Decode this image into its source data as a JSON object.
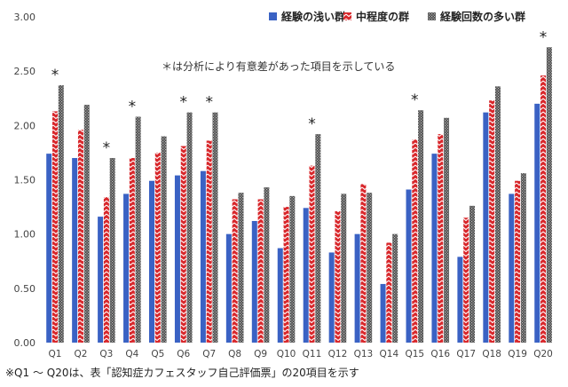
{
  "chart_data": {
    "type": "bar",
    "title": "",
    "xlabel": "",
    "ylabel": "",
    "ylim": [
      0,
      3
    ],
    "yticks": [
      "0.00",
      "0.50",
      "1.00",
      "1.50",
      "2.00",
      "2.50",
      "3.00"
    ],
    "grid": false,
    "legend_position": "top-right",
    "categories": [
      "Q1",
      "Q2",
      "Q3",
      "Q4",
      "Q5",
      "Q6",
      "Q7",
      "Q8",
      "Q9",
      "Q10",
      "Q11",
      "Q12",
      "Q13",
      "Q14",
      "Q15",
      "Q16",
      "Q17",
      "Q18",
      "Q19",
      "Q20"
    ],
    "series": [
      {
        "name": "経験の浅い群",
        "color": "#3a62c4",
        "pattern": "solid",
        "values": [
          1.74,
          1.7,
          1.16,
          1.37,
          1.49,
          1.54,
          1.58,
          1.0,
          1.12,
          0.87,
          1.24,
          0.83,
          1.0,
          0.54,
          1.41,
          1.74,
          0.79,
          2.12,
          1.37,
          2.2
        ]
      },
      {
        "name": "中程度の群",
        "color": "#d8262a",
        "pattern": "zigzag",
        "values": [
          2.13,
          1.96,
          1.34,
          1.7,
          1.75,
          1.81,
          1.86,
          1.32,
          1.32,
          1.25,
          1.63,
          1.21,
          1.46,
          0.92,
          1.87,
          1.92,
          1.15,
          2.23,
          1.49,
          2.46
        ]
      },
      {
        "name": "経験回数の多い群",
        "color": "#555555",
        "pattern": "checker",
        "values": [
          2.37,
          2.19,
          1.7,
          2.08,
          1.9,
          2.12,
          2.12,
          1.38,
          1.43,
          1.35,
          1.92,
          1.37,
          1.38,
          1.0,
          2.14,
          2.07,
          1.26,
          2.36,
          1.56,
          2.72
        ]
      }
    ],
    "significant": [
      "Q1",
      "Q3",
      "Q4",
      "Q6",
      "Q7",
      "Q11",
      "Q15",
      "Q20"
    ],
    "significance_mark": "*",
    "annotation": "＊は分析により有意差があった項目を示している",
    "footnote": "※Q1 ～ Q20は、表「認知症カフェスタッフ自己評価票」の20項目を示す"
  }
}
